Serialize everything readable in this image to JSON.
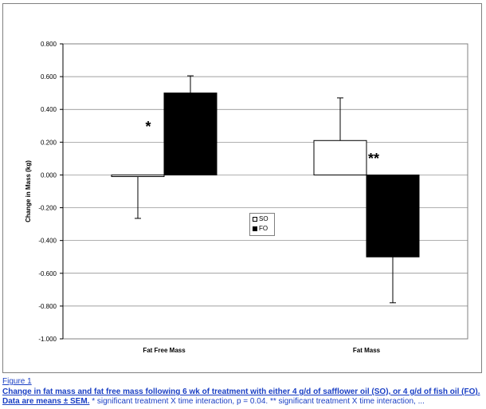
{
  "chart_data": {
    "type": "bar",
    "ylabel": "Change in Mass (kg)",
    "xlabel": "",
    "ylim": [
      -1.0,
      0.8
    ],
    "yticks": [
      "-1.000",
      "-0.800",
      "-0.600",
      "-0.400",
      "-0.200",
      "0.000",
      "0.200",
      "0.400",
      "0.600",
      "0.800"
    ],
    "categories": [
      "Fat Free Mass",
      "Fat Mass"
    ],
    "series": [
      {
        "name": "SO",
        "color": "#ffffff",
        "values": [
          -0.01,
          0.21
        ],
        "errors": [
          0.255,
          0.26
        ]
      },
      {
        "name": "FO",
        "color": "#000000",
        "values": [
          0.5,
          -0.5
        ],
        "errors": [
          0.105,
          0.28
        ]
      }
    ],
    "annotations": [
      "*",
      "**"
    ],
    "grid": "horizontal",
    "legend": "center"
  },
  "figure": {
    "label": "Figure 1",
    "caption_bold": "Change in fat mass and fat free mass following 6 wk of treatment with either 4 g/d of safflower oil (SO), or 4 g/d of fish oil (FO). Data are means ± SEM.",
    "caption_rest": " * significant treatment X time interaction, p = 0.04. ** significant treatment X time interaction, ..."
  }
}
